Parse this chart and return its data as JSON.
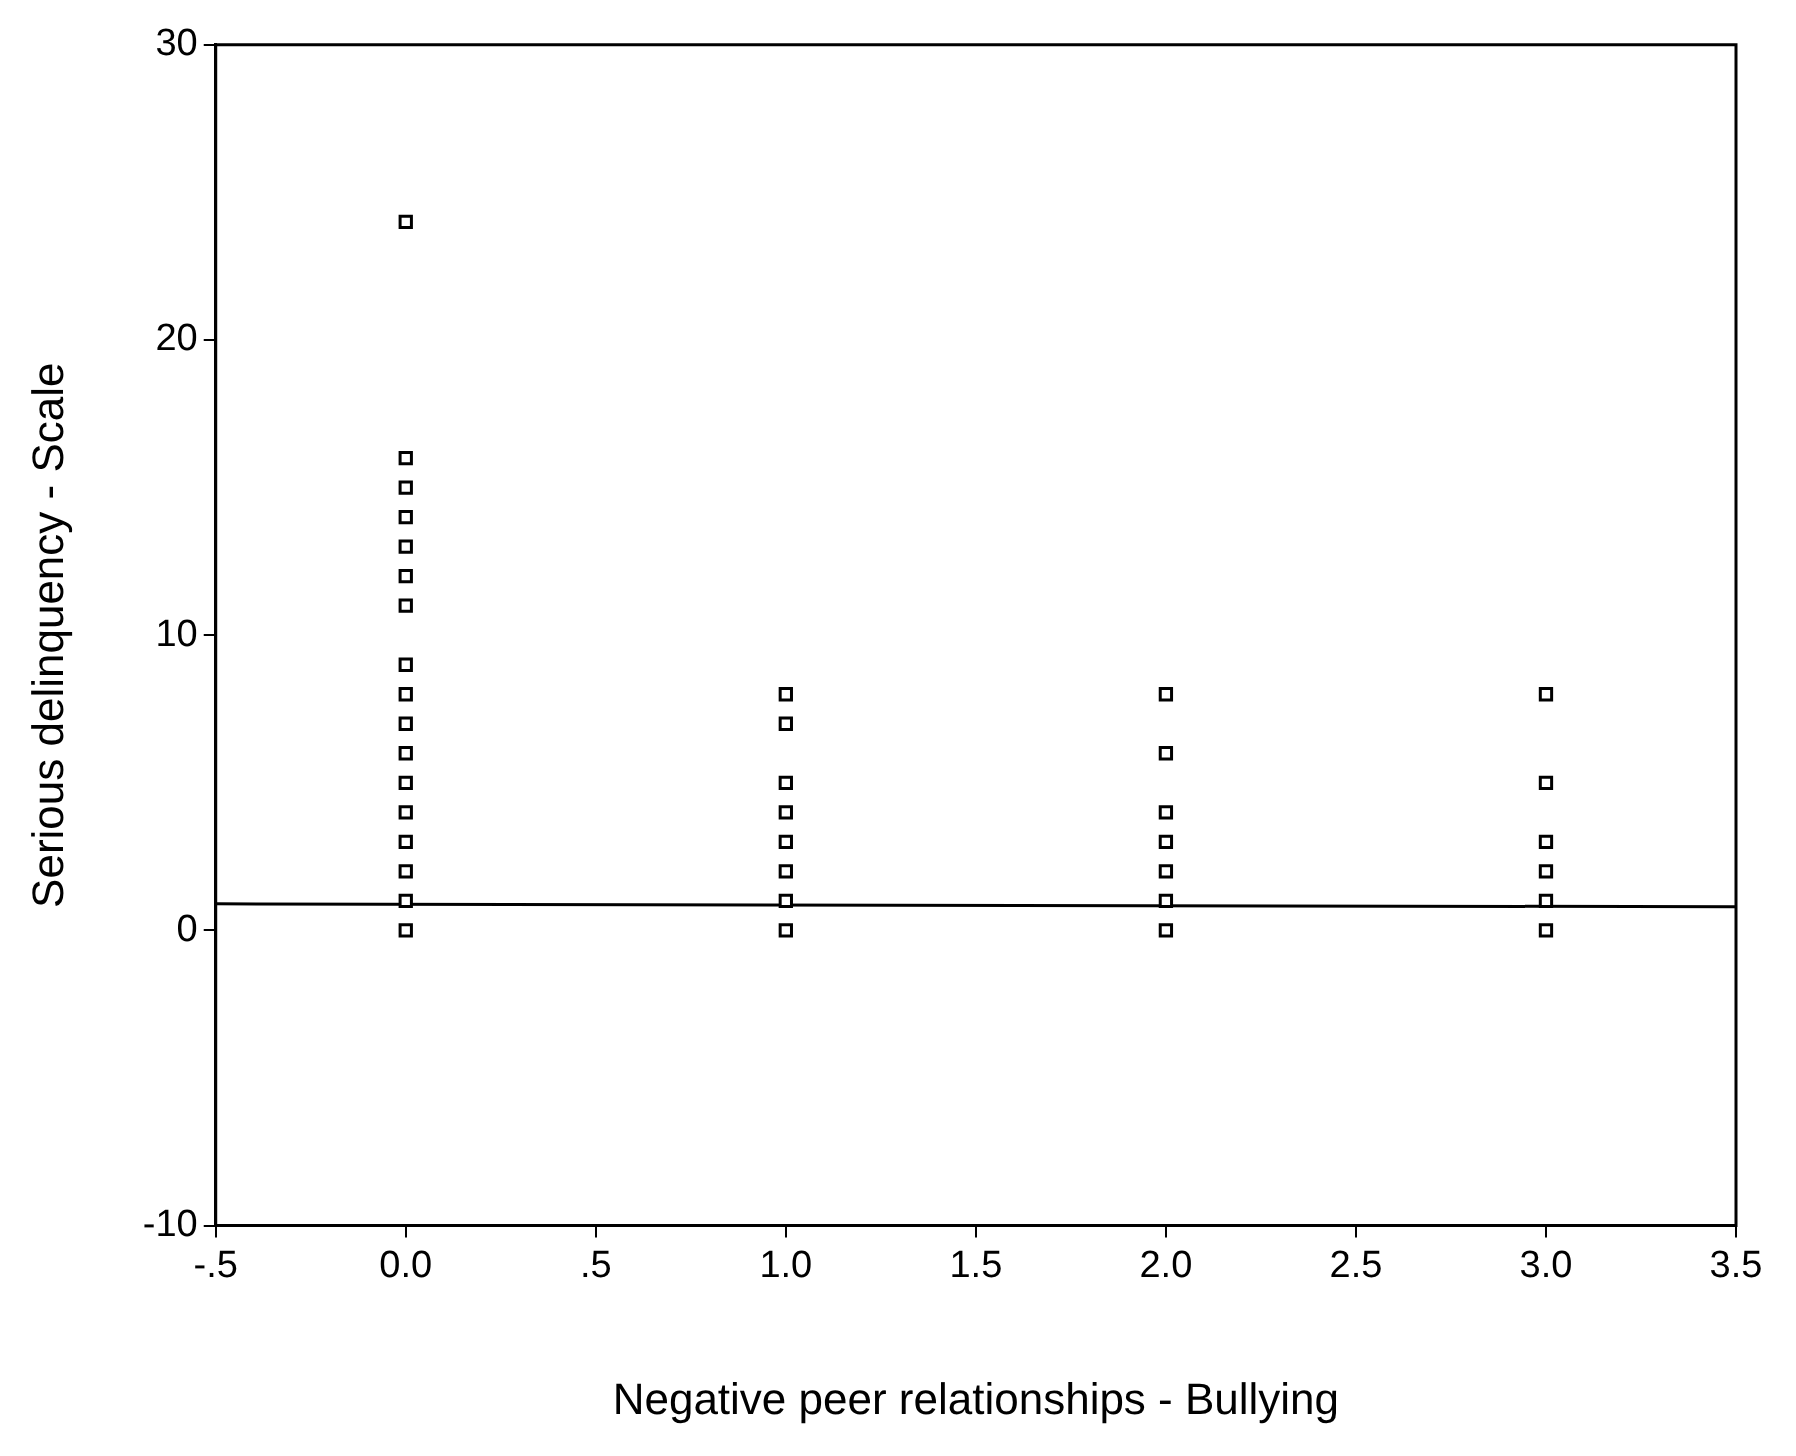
{
  "chart_data": {
    "type": "scatter",
    "xlabel": "Negative peer relationships - Bullying",
    "ylabel": "Serious delinquency - Scale",
    "marker": "square",
    "grid": false,
    "legend": false,
    "xlim": [
      -0.5,
      3.5
    ],
    "xticks": [
      {
        "value": -0.5,
        "label": "-.5"
      },
      {
        "value": 0,
        "label": "0.0"
      },
      {
        "value": 0.5,
        "label": ".5"
      },
      {
        "value": 1,
        "label": "1.0"
      },
      {
        "value": 1.5,
        "label": "1.5"
      },
      {
        "value": 2,
        "label": "2.0"
      },
      {
        "value": 2.5,
        "label": "2.5"
      },
      {
        "value": 3,
        "label": "3.0"
      },
      {
        "value": 3.5,
        "label": "3.5"
      }
    ],
    "ylim": [
      -10,
      30
    ],
    "yticks": [
      -10,
      0,
      10,
      20,
      30
    ],
    "series": [
      {
        "color": "#000000",
        "x": [
          0,
          0,
          0,
          0,
          0,
          0,
          0,
          0,
          0,
          0,
          0,
          0,
          0,
          0,
          0,
          0,
          0,
          1,
          1,
          1,
          1,
          1,
          1,
          1,
          1,
          2,
          2,
          2,
          2,
          2,
          2,
          2,
          3,
          3,
          3,
          3,
          3,
          3
        ],
        "values": [
          24,
          16,
          15,
          14,
          13,
          12,
          11,
          9,
          8,
          7,
          6,
          5,
          4,
          3,
          2,
          1,
          0,
          8,
          7,
          5,
          4,
          3,
          2,
          1,
          0,
          8,
          6,
          4,
          3,
          2,
          1,
          0,
          8,
          5,
          3,
          2,
          1,
          0
        ]
      },
      {
        "type": "line",
        "color": "#000000",
        "marker": "none",
        "x": [
          -0.5,
          3.5
        ],
        "values": [
          0.9,
          0.8
        ]
      }
    ]
  }
}
